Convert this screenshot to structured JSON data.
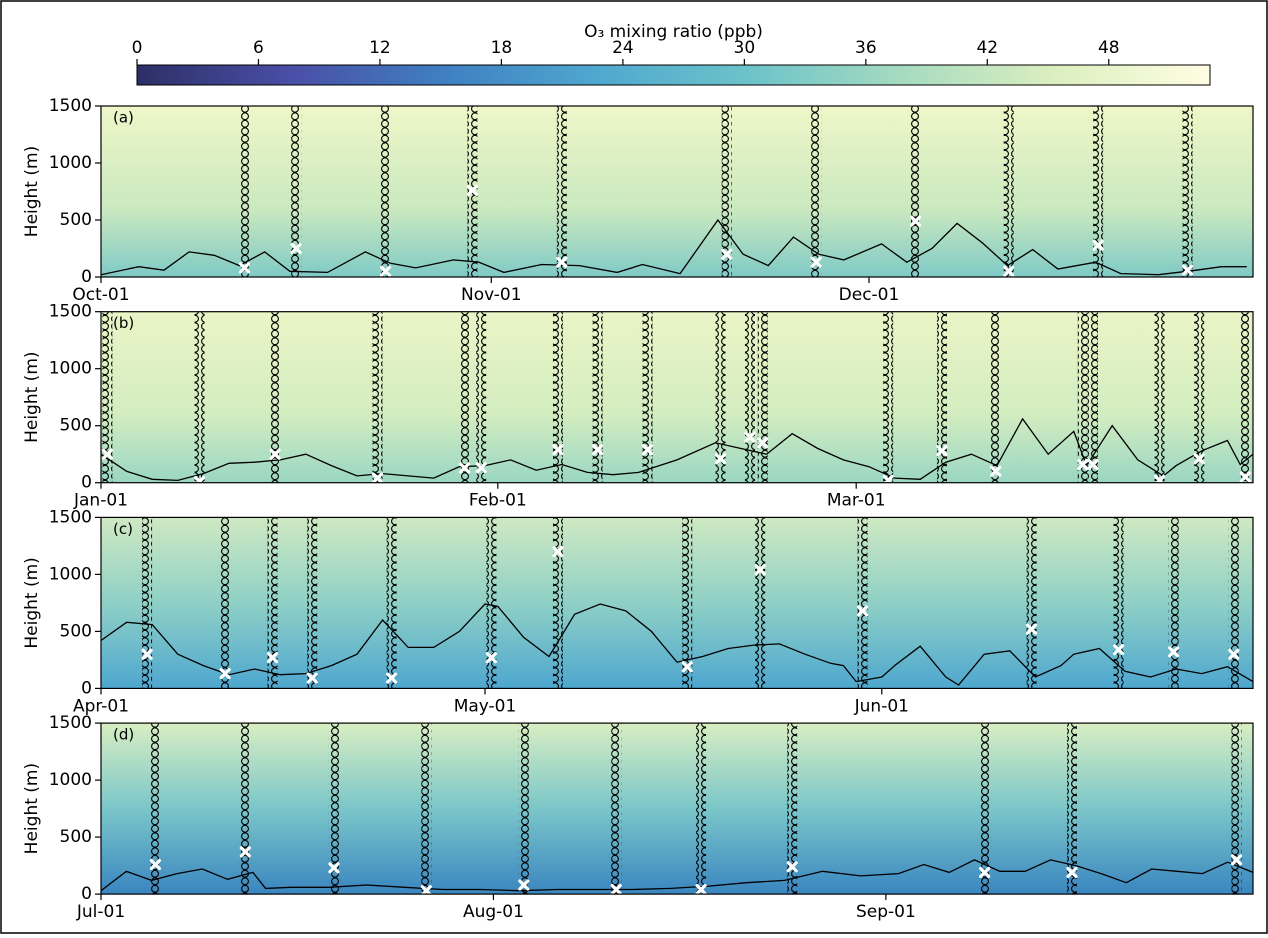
{
  "chart_data": [
    {
      "type": "colorbar",
      "label": "O₃ mixing ratio (ppb)",
      "xlim": [
        0,
        53
      ],
      "xticks": [
        0,
        6,
        12,
        18,
        24,
        30,
        36,
        42,
        48
      ],
      "colors": [
        "#2c2f66",
        "#4a4ea6",
        "#3f7fc1",
        "#4fa8cf",
        "#6cc3c9",
        "#a6dbc0",
        "#dcefc0",
        "#fffde2"
      ]
    },
    {
      "type": "line",
      "label": "(a)",
      "ylabel": "Height (m)",
      "color": "#000000",
      "xlim": [
        0,
        91.5
      ],
      "xticks": [
        {
          "value": 0,
          "label": "Oct-01"
        },
        {
          "value": 31,
          "label": "Nov-01"
        },
        {
          "value": 61,
          "label": "Dec-01"
        }
      ],
      "ylim": [
        0,
        1500
      ],
      "yticks": [
        0,
        500,
        1000,
        1500
      ],
      "x": [
        0,
        3,
        5,
        7,
        9,
        11,
        13,
        15,
        18,
        21,
        23,
        25,
        28,
        30,
        32,
        35,
        38,
        41,
        43,
        46,
        49,
        51,
        53,
        55,
        57,
        59,
        62,
        64,
        66,
        68,
        70,
        72,
        74,
        76,
        79,
        81,
        84,
        87,
        89,
        91
      ],
      "values": [
        20,
        90,
        60,
        220,
        190,
        100,
        220,
        50,
        40,
        220,
        120,
        80,
        150,
        130,
        40,
        110,
        100,
        40,
        110,
        30,
        500,
        200,
        100,
        350,
        200,
        150,
        290,
        130,
        250,
        470,
        300,
        100,
        240,
        70,
        130,
        30,
        20,
        60,
        90,
        90
      ],
      "sondes": {
        "x": [
          11.4,
          15.5,
          22.6,
          29.5,
          36.6,
          49.7,
          56.8,
          64.7,
          72.1,
          79.2,
          86.3
        ],
        "values": [
          80,
          250,
          50,
          760,
          130,
          200,
          130,
          490,
          50,
          280,
          60
        ]
      }
    },
    {
      "type": "line",
      "label": "(b)",
      "ylabel": "Height (m)",
      "color": "#000000",
      "xlim": [
        0,
        90
      ],
      "xticks": [
        {
          "value": 0,
          "label": "Jan-01"
        },
        {
          "value": 31,
          "label": "Feb-01"
        },
        {
          "value": 59,
          "label": "Mar-01"
        }
      ],
      "ylim": [
        0,
        1500
      ],
      "yticks": [
        0,
        500,
        1000,
        1500
      ],
      "x": [
        0,
        2,
        4,
        6,
        8,
        10,
        12,
        14,
        16,
        18,
        20,
        22,
        24,
        26,
        28,
        30,
        32,
        34,
        36,
        38,
        40,
        42,
        45,
        48,
        50,
        52,
        54,
        56,
        58,
        60,
        62,
        64,
        66,
        68,
        70,
        72,
        74,
        76,
        77,
        79,
        81,
        83,
        84,
        86,
        88,
        89,
        90
      ],
      "values": [
        250,
        100,
        30,
        20,
        80,
        170,
        180,
        200,
        250,
        150,
        60,
        80,
        60,
        40,
        140,
        150,
        200,
        110,
        160,
        90,
        70,
        90,
        200,
        350,
        300,
        250,
        430,
        300,
        200,
        140,
        40,
        30,
        180,
        250,
        150,
        560,
        250,
        450,
        150,
        500,
        200,
        60,
        150,
        280,
        370,
        160,
        250
      ],
      "sondes": {
        "x": [
          0.5,
          7.7,
          13.6,
          21.6,
          28.4,
          29.7,
          35.7,
          38.8,
          42.7,
          48.4,
          50.7,
          51.7,
          61.5,
          65.7,
          69.9,
          76.7,
          77.5,
          82.7,
          85.8,
          89.4
        ],
        "values": [
          250,
          10,
          250,
          40,
          130,
          130,
          290,
          290,
          290,
          210,
          400,
          350,
          20,
          280,
          100,
          160,
          160,
          20,
          210,
          50
        ]
      }
    },
    {
      "type": "line",
      "label": "(c)",
      "ylabel": "Height (m)",
      "color": "#000000",
      "xlim": [
        0,
        90
      ],
      "xticks": [
        {
          "value": 0,
          "label": "Apr-01"
        },
        {
          "value": 30,
          "label": "May-01"
        },
        {
          "value": 61,
          "label": "Jun-01"
        }
      ],
      "ylim": [
        0,
        1500
      ],
      "yticks": [
        0,
        500,
        1000,
        1500
      ],
      "x": [
        0,
        2,
        4,
        6,
        8,
        10,
        12,
        14,
        16,
        18,
        20,
        22,
        24,
        26,
        28,
        30,
        31,
        33,
        35,
        37,
        39,
        41,
        43,
        45,
        47,
        49,
        51,
        53,
        55,
        57,
        58,
        59,
        61,
        62,
        64,
        66,
        67,
        69,
        71,
        73,
        75,
        76,
        78,
        80,
        82,
        84,
        86,
        88,
        90
      ],
      "values": [
        420,
        580,
        560,
        300,
        200,
        120,
        170,
        120,
        130,
        200,
        300,
        600,
        360,
        360,
        500,
        740,
        720,
        450,
        280,
        650,
        740,
        680,
        500,
        230,
        280,
        350,
        380,
        390,
        300,
        220,
        200,
        60,
        100,
        200,
        370,
        100,
        30,
        300,
        330,
        100,
        200,
        300,
        350,
        150,
        100,
        170,
        130,
        190,
        60
      ],
      "sondes": {
        "x": [
          3.6,
          9.7,
          13.4,
          16.5,
          22.7,
          30.5,
          35.7,
          45.8,
          51.5,
          59.5,
          72.7,
          79.5,
          83.8,
          88.5
        ],
        "values": [
          300,
          130,
          270,
          90,
          90,
          270,
          1200,
          190,
          1040,
          680,
          520,
          340,
          320,
          300
        ]
      }
    },
    {
      "type": "line",
      "label": "(d)",
      "ylabel": "Height (m)",
      "color": "#000000",
      "xlim": [
        0,
        91
      ],
      "xticks": [
        {
          "value": 0,
          "label": "Jul-01"
        },
        {
          "value": 31,
          "label": "Aug-01"
        },
        {
          "value": 62,
          "label": "Sep-01"
        }
      ],
      "ylim": [
        0,
        1500
      ],
      "yticks": [
        0,
        500,
        1000,
        1500
      ],
      "x": [
        0,
        2,
        4,
        6,
        8,
        10,
        12,
        13,
        15,
        18,
        21,
        24,
        27,
        30,
        33,
        36,
        39,
        42,
        45,
        48,
        51,
        54,
        57,
        60,
        63,
        65,
        67,
        69,
        71,
        73,
        75,
        77,
        79,
        81,
        83,
        85,
        87,
        89,
        91
      ],
      "values": [
        30,
        200,
        120,
        180,
        220,
        130,
        190,
        50,
        60,
        60,
        80,
        60,
        40,
        40,
        30,
        40,
        40,
        40,
        50,
        70,
        100,
        120,
        200,
        160,
        180,
        260,
        190,
        300,
        200,
        200,
        300,
        250,
        180,
        100,
        220,
        200,
        180,
        280,
        190
      ],
      "sondes": {
        "x": [
          4.3,
          11.4,
          18.4,
          25.7,
          33.4,
          40.7,
          47.4,
          54.6,
          69.8,
          76.7,
          89.7
        ],
        "values": [
          260,
          370,
          230,
          30,
          80,
          40,
          40,
          240,
          190,
          190,
          300
        ]
      }
    }
  ]
}
